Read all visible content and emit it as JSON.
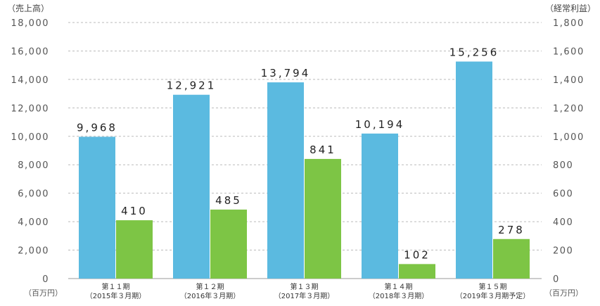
{
  "chart_data": {
    "type": "bar",
    "left_axis_title": "（売上高）",
    "right_axis_title": "（経常利益）",
    "left_unit": "（百万円）",
    "right_unit": "（百万円）",
    "categories": [
      {
        "line1": "第１１期",
        "line2": "（2015年３月期）"
      },
      {
        "line1": "第１２期",
        "line2": "（2016年３月期）"
      },
      {
        "line1": "第１３期",
        "line2": "（2017年３月期）"
      },
      {
        "line1": "第１４期",
        "line2": "（2018年３月期）"
      },
      {
        "line1": "第１５期",
        "line2": "（2019年３月期予定）"
      }
    ],
    "series": [
      {
        "name": "売上高",
        "axis": "left",
        "color": "#5bbae0",
        "values": [
          9968,
          12921,
          13794,
          10194,
          15256
        ],
        "labels": [
          "9,968",
          "12,921",
          "13,794",
          "10,194",
          "15,256"
        ]
      },
      {
        "name": "経常利益",
        "axis": "right",
        "color": "#7dc545",
        "values": [
          410,
          485,
          841,
          102,
          278
        ],
        "labels": [
          "410",
          "485",
          "841",
          "102",
          "278"
        ]
      }
    ],
    "left_ylim": [
      0,
      18000
    ],
    "right_ylim": [
      0,
      1800
    ],
    "left_ticks": [
      "0",
      "2,000",
      "4,000",
      "6,000",
      "8,000",
      "10,000",
      "12,000",
      "14,000",
      "16,000",
      "18,000"
    ],
    "right_ticks": [
      "0",
      "200",
      "400",
      "600",
      "800",
      "1,000",
      "1,200",
      "1,400",
      "1,600",
      "1,800"
    ],
    "grid": "dashed horizontal",
    "legend": "none"
  }
}
